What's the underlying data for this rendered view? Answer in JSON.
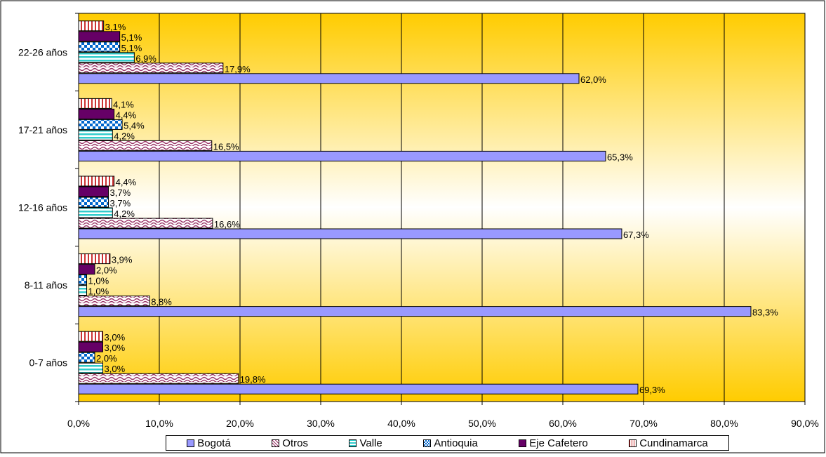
{
  "chart_data": {
    "type": "bar",
    "orientation": "horizontal",
    "categories": [
      "0-7 años",
      "8-11 años",
      "12-16 años",
      "17-21 años",
      "22-26 años"
    ],
    "series": [
      {
        "name": "Bogotá",
        "values": [
          69.3,
          83.3,
          67.3,
          65.3,
          62.0
        ],
        "labels": [
          "69,3%",
          "83,3%",
          "67,3%",
          "65,3%",
          "62,0%"
        ],
        "color": "#9999ff",
        "pattern": "solid"
      },
      {
        "name": "Otros",
        "values": [
          19.8,
          8.8,
          16.6,
          16.5,
          17.9
        ],
        "labels": [
          "19,8%",
          "8,8%",
          "16,6%",
          "16,5%",
          "17,9%"
        ],
        "color": "#993366",
        "pattern": "wave"
      },
      {
        "name": "Valle",
        "values": [
          3.0,
          1.0,
          4.2,
          4.2,
          6.9
        ],
        "labels": [
          "3,0%",
          "1,0%",
          "4,2%",
          "4,2%",
          "6,9%"
        ],
        "color": "#33cccc",
        "pattern": "hstripes"
      },
      {
        "name": "Antioquia",
        "values": [
          2.0,
          1.0,
          3.7,
          5.4,
          5.1
        ],
        "labels": [
          "2,0%",
          "1,0%",
          "3,7%",
          "5,4%",
          "5,1%"
        ],
        "color": "#0066cc",
        "pattern": "checker"
      },
      {
        "name": "Eje Cafetero",
        "values": [
          3.0,
          2.0,
          3.7,
          4.4,
          5.1
        ],
        "labels": [
          "3,0%",
          "2,0%",
          "3,7%",
          "4,4%",
          "5,1%"
        ],
        "color": "#660066",
        "pattern": "solid"
      },
      {
        "name": "Cundinamarca",
        "values": [
          3.0,
          3.9,
          4.4,
          4.1,
          3.1
        ],
        "labels": [
          "3,0%",
          "3,9%",
          "4,4%",
          "4,1%",
          "3,1%"
        ],
        "color": "#cc3333",
        "pattern": "vstripes"
      }
    ],
    "x_ticks": [
      "0,0%",
      "10,0%",
      "20,0%",
      "30,0%",
      "40,0%",
      "50,0%",
      "60,0%",
      "70,0%",
      "80,0%",
      "90,0%"
    ],
    "xlim": [
      0,
      90
    ],
    "xlabel": "",
    "ylabel": "",
    "title": "",
    "grid": true,
    "legend_position": "bottom",
    "background": "gold-white gradient"
  }
}
